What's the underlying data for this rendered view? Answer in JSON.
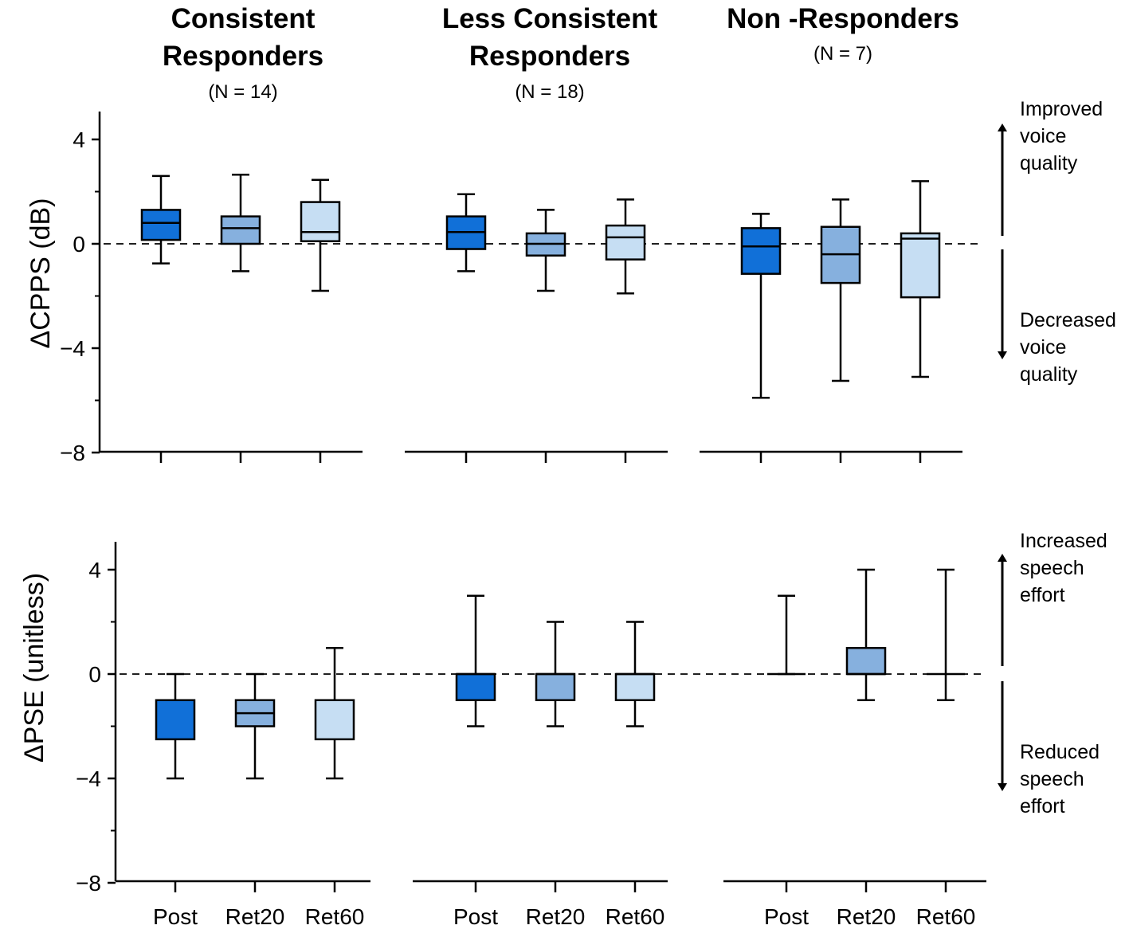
{
  "chart_data": {
    "type": "box",
    "categories": [
      "Post",
      "Ret20",
      "Ret60"
    ],
    "colors": {
      "Post": "#1170d8",
      "Ret20": "#86b0de",
      "Ret60": "#c6def3"
    },
    "groups": [
      {
        "title_line1": "Consistent",
        "title_line2": "Responders",
        "n_label": "(N = 14)"
      },
      {
        "title_line1": "Less Consistent",
        "title_line2": "Responders",
        "n_label": "(N = 18)"
      },
      {
        "title_line1": "Non -Responders",
        "title_line2": "",
        "n_label": "(N = 7)"
      }
    ],
    "panels": [
      {
        "id": "cpps",
        "ylabel": "ΔCPPS (dB)",
        "ylim": [
          -8,
          4.8
        ],
        "yticks": [
          4,
          0,
          -4,
          -8
        ],
        "show_xlabels": false,
        "reference_line": 0,
        "annotation_up": [
          "Improved",
          "voice",
          "quality"
        ],
        "annotation_down": [
          "Decreased",
          "voice",
          "quality"
        ],
        "boxes": [
          [
            {
              "min": -0.75,
              "q1": 0.15,
              "median": 0.8,
              "q3": 1.3,
              "max": 2.6
            },
            {
              "min": -1.05,
              "q1": 0.0,
              "median": 0.6,
              "q3": 1.05,
              "max": 2.65
            },
            {
              "min": -1.8,
              "q1": 0.1,
              "median": 0.45,
              "q3": 1.6,
              "max": 2.45
            }
          ],
          [
            {
              "min": -1.05,
              "q1": -0.2,
              "median": 0.45,
              "q3": 1.05,
              "max": 1.9
            },
            {
              "min": -1.8,
              "q1": -0.45,
              "median": 0.0,
              "q3": 0.4,
              "max": 1.3
            },
            {
              "min": -1.9,
              "q1": -0.6,
              "median": 0.25,
              "q3": 0.7,
              "max": 1.7
            }
          ],
          [
            {
              "min": -5.9,
              "q1": -1.15,
              "median": -0.1,
              "q3": 0.6,
              "max": 1.15
            },
            {
              "min": -5.25,
              "q1": -1.5,
              "median": -0.4,
              "q3": 0.65,
              "max": 1.7
            },
            {
              "min": -5.1,
              "q1": -2.05,
              "median": 0.2,
              "q3": 0.4,
              "max": 2.4
            }
          ]
        ]
      },
      {
        "id": "pse",
        "ylabel": "ΔPSE (unitless)",
        "ylim": [
          -8,
          5
        ],
        "yticks": [
          4,
          0,
          -4,
          -8
        ],
        "show_xlabels": true,
        "reference_line": 0,
        "annotation_up": [
          "Increased",
          "speech",
          "effort"
        ],
        "annotation_down": [
          "Reduced",
          "speech",
          "effort"
        ],
        "boxes": [
          [
            {
              "min": -4,
              "q1": -2.5,
              "median": -1.0,
              "q3": -1.0,
              "max": 0
            },
            {
              "min": -4,
              "q1": -2.0,
              "median": -1.5,
              "q3": -1.0,
              "max": 0
            },
            {
              "min": -4,
              "q1": -2.5,
              "median": -1.0,
              "q3": -1.0,
              "max": 1
            }
          ],
          [
            {
              "min": -2,
              "q1": -1.0,
              "median": 0.0,
              "q3": 0.0,
              "max": 3
            },
            {
              "min": -2,
              "q1": -1.0,
              "median": 0.0,
              "q3": 0.0,
              "max": 2
            },
            {
              "min": -2,
              "q1": -1.0,
              "median": 0.0,
              "q3": 0.0,
              "max": 2
            }
          ],
          [
            {
              "min": 0,
              "q1": 0,
              "median": 0,
              "q3": 0,
              "max": 3
            },
            {
              "min": -1,
              "q1": 0,
              "median": 0,
              "q3": 1,
              "max": 4
            },
            {
              "min": -1,
              "q1": 0,
              "median": 0,
              "q3": 0,
              "max": 4
            }
          ]
        ]
      }
    ]
  }
}
